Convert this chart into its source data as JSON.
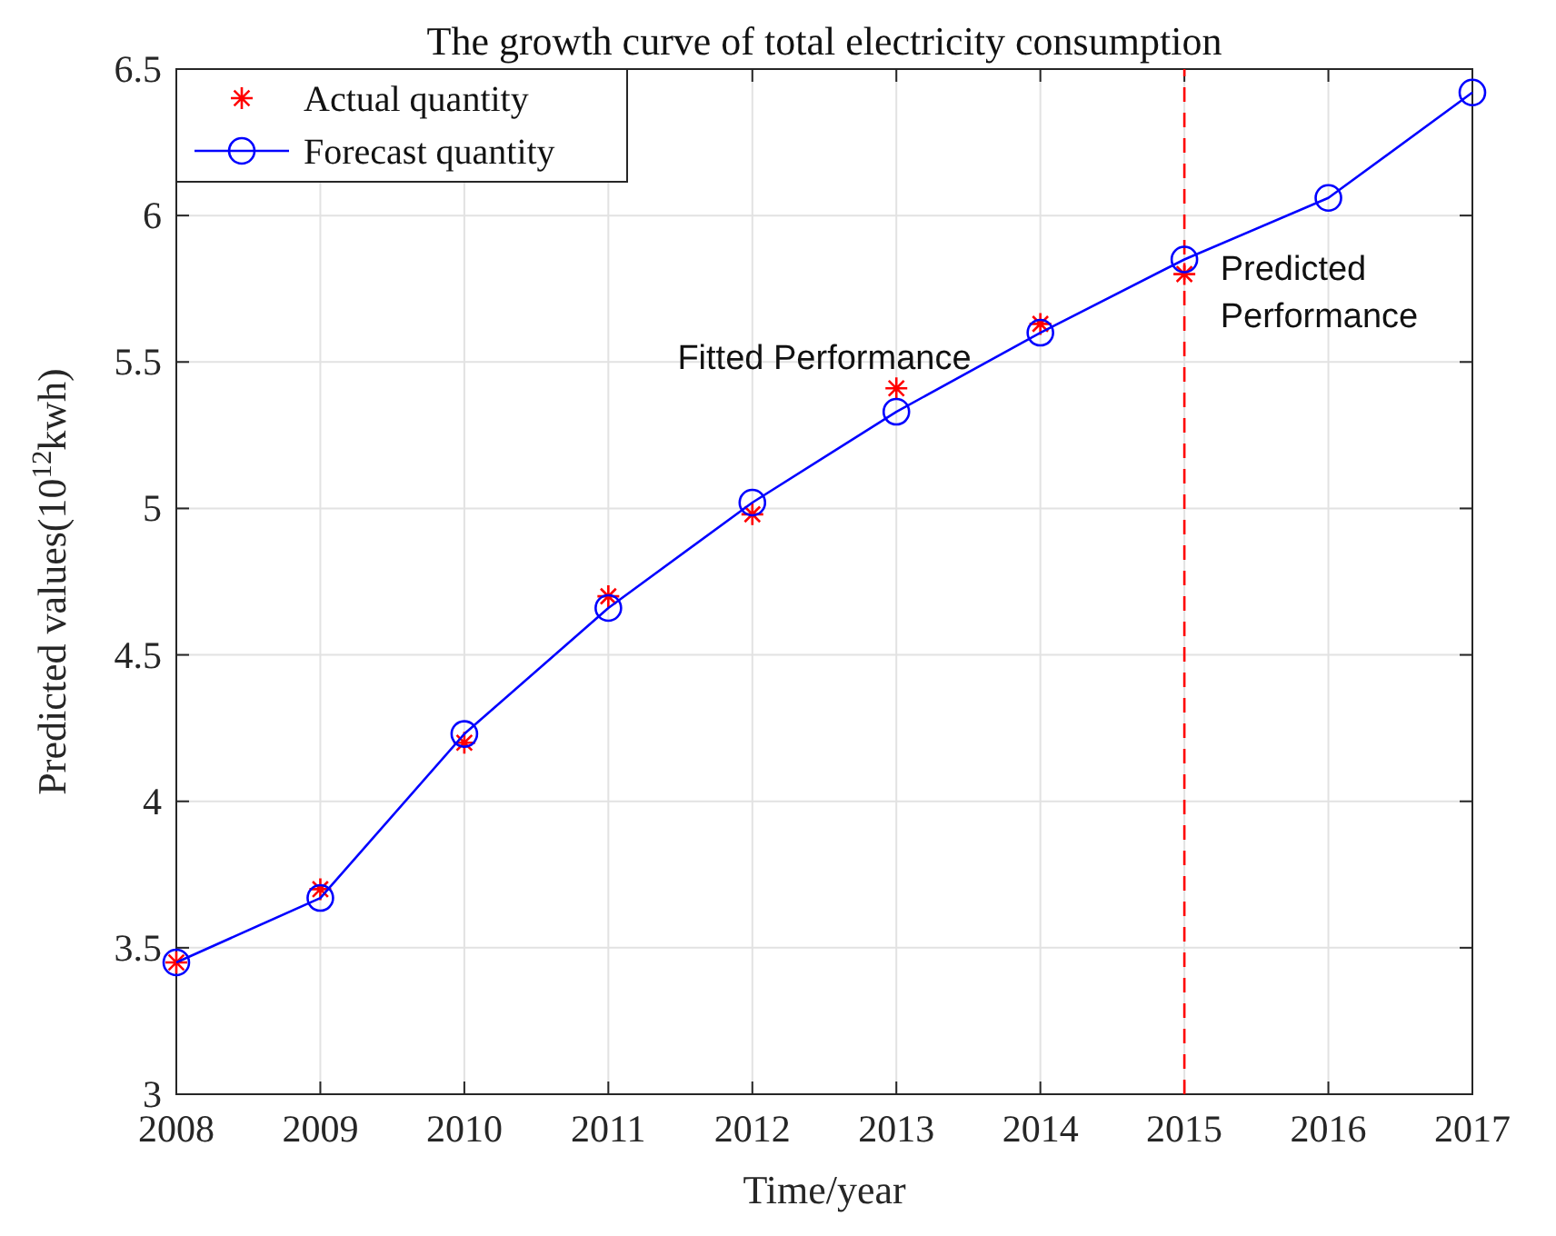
{
  "chart_data": {
    "type": "line",
    "title": "The growth curve of total electricity consumption",
    "xlabel": "Time/year",
    "ylabel": "Predicted values(10$^{12}$kwh)",
    "xlim": [
      2008,
      2017
    ],
    "xticks": [
      2008,
      2009,
      2010,
      2011,
      2012,
      2013,
      2014,
      2015,
      2016,
      2017
    ],
    "ylim": [
      3,
      6.5
    ],
    "yticks": [
      3,
      3.5,
      4,
      4.5,
      5,
      5.5,
      6,
      6.5
    ],
    "grid": true,
    "legend": "top left",
    "series": [
      {
        "name": "Actual quantity",
        "type": "scatter",
        "marker": "cross",
        "color": "#ff0000",
        "x": [
          2008,
          2009,
          2010,
          2011,
          2012,
          2013,
          2014,
          2015
        ],
        "values": [
          3.45,
          3.7,
          4.2,
          4.7,
          4.98,
          5.41,
          5.63,
          5.8
        ]
      },
      {
        "name": "Forecast quantity",
        "marker": "circle",
        "color": "#0000ff",
        "x": [
          2008,
          2009,
          2010,
          2011,
          2012,
          2013,
          2014,
          2015,
          2016,
          2017
        ],
        "values": [
          3.45,
          3.67,
          4.23,
          4.66,
          5.02,
          5.33,
          5.6,
          5.85,
          6.06,
          6.42
        ]
      }
    ],
    "ref_lines": [
      {
        "axis": "x",
        "value": 2015,
        "color": "#ff0000",
        "line_style": "dashed"
      }
    ],
    "annotations": [
      "Fitted Performance",
      "Predicted\nPerformance"
    ]
  }
}
